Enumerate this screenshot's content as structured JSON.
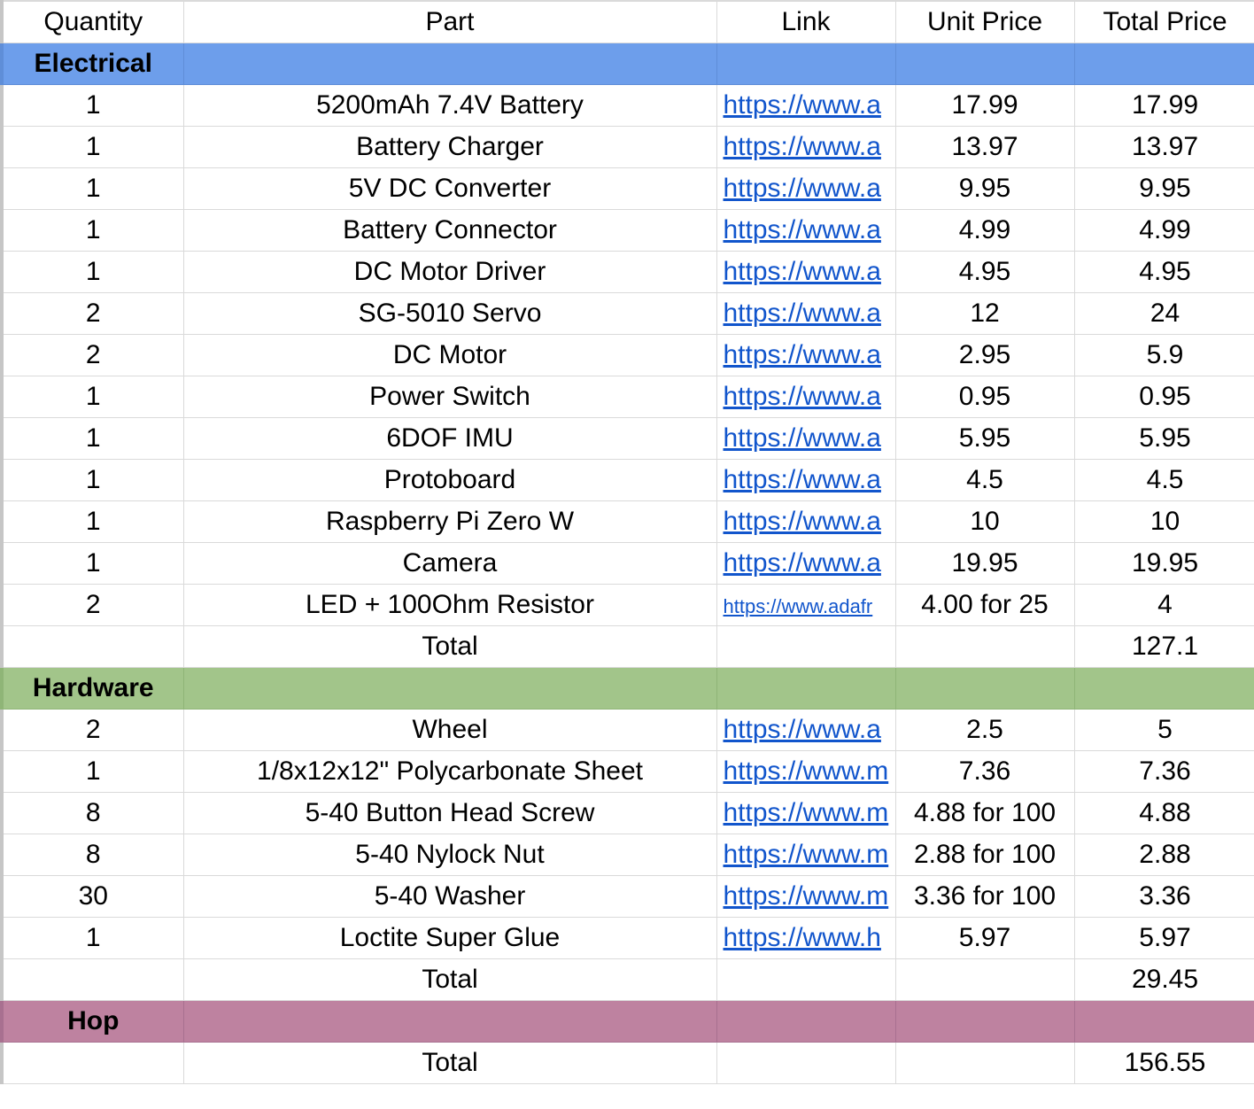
{
  "headers": [
    "Quantity",
    "Part",
    "Link",
    "Unit Price",
    "Total Price"
  ],
  "colors": {
    "electrical": "#6d9eeb",
    "hardware": "#a2c58a",
    "hop": "#be82a0",
    "link": "#1155cc"
  },
  "electrical": {
    "label": "Electrical",
    "rows": [
      {
        "qty": "1",
        "part": "5200mAh 7.4V Battery",
        "link": "https://www.a",
        "unit": "17.99",
        "total": "17.99"
      },
      {
        "qty": "1",
        "part": "Battery Charger",
        "link": "https://www.a",
        "unit": "13.97",
        "total": "13.97"
      },
      {
        "qty": "1",
        "part": "5V DC Converter",
        "link": "https://www.a",
        "unit": "9.95",
        "total": "9.95"
      },
      {
        "qty": "1",
        "part": "Battery Connector",
        "link": "https://www.a",
        "unit": "4.99",
        "total": "4.99"
      },
      {
        "qty": "1",
        "part": "DC Motor Driver",
        "link": "https://www.a",
        "unit": "4.95",
        "total": "4.95"
      },
      {
        "qty": "2",
        "part": "SG-5010 Servo",
        "link": "https://www.a",
        "unit": "12",
        "total": "24"
      },
      {
        "qty": "2",
        "part": "DC Motor",
        "link": "https://www.a",
        "unit": "2.95",
        "total": "5.9"
      },
      {
        "qty": "1",
        "part": "Power Switch",
        "link": "https://www.a",
        "unit": "0.95",
        "total": "0.95"
      },
      {
        "qty": "1",
        "part": "6DOF IMU",
        "link": "https://www.a",
        "unit": "5.95",
        "total": "5.95"
      },
      {
        "qty": "1",
        "part": "Protoboard",
        "link": "https://www.a",
        "unit": "4.5",
        "total": "4.5"
      },
      {
        "qty": "1",
        "part": "Raspberry Pi Zero W",
        "link": "https://www.a",
        "unit": "10",
        "total": "10"
      },
      {
        "qty": "1",
        "part": "Camera",
        "link": "https://www.a",
        "unit": "19.95",
        "total": "19.95"
      },
      {
        "qty": "2",
        "part": "LED + 100Ohm Resistor",
        "link": "https://www.adafr",
        "unit": "4.00 for 25",
        "total": "4"
      }
    ],
    "total_label": "Total",
    "total": "127.1"
  },
  "hardware": {
    "label": "Hardware",
    "rows": [
      {
        "qty": "2",
        "part": "Wheel",
        "link": "https://www.a",
        "unit": "2.5",
        "total": "5"
      },
      {
        "qty": "1",
        "part": "1/8x12x12\" Polycarbonate Sheet",
        "link": "https://www.m",
        "unit": "7.36",
        "total": "7.36"
      },
      {
        "qty": "8",
        "part": "5-40 Button Head Screw",
        "link": "https://www.m",
        "unit": "4.88 for 100",
        "total": "4.88"
      },
      {
        "qty": "8",
        "part": "5-40 Nylock Nut",
        "link": "https://www.m",
        "unit": "2.88 for 100",
        "total": "2.88"
      },
      {
        "qty": "30",
        "part": "5-40 Washer",
        "link": "https://www.m",
        "unit": "3.36 for 100",
        "total": "3.36"
      },
      {
        "qty": "1",
        "part": "Loctite Super Glue",
        "link": "https://www.h",
        "unit": "5.97",
        "total": "5.97"
      }
    ],
    "total_label": "Total",
    "total": "29.45"
  },
  "hop": {
    "label": "Hop"
  },
  "grand_total": {
    "label": "Total",
    "value": "156.55"
  }
}
